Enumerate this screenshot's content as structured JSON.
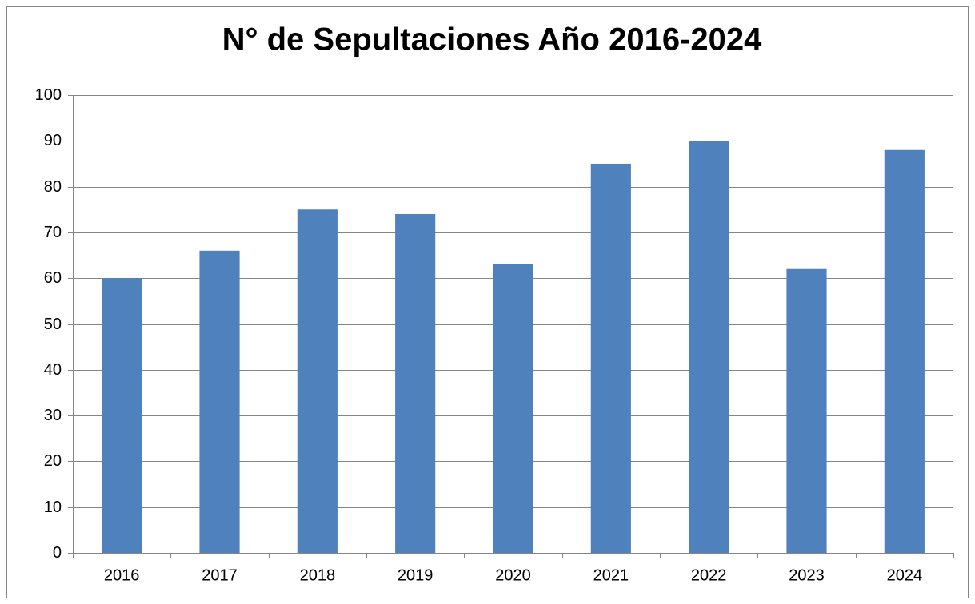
{
  "chart_data": {
    "type": "bar",
    "title": "N° de Sepultaciones Año 2016-2024",
    "categories": [
      "2016",
      "2017",
      "2018",
      "2019",
      "2020",
      "2021",
      "2022",
      "2023",
      "2024"
    ],
    "values": [
      60,
      66,
      75,
      74,
      63,
      85,
      90,
      62,
      88
    ],
    "color": "#4f81bd",
    "ylim": [
      0,
      100
    ],
    "yticks": [
      0,
      10,
      20,
      30,
      40,
      50,
      60,
      70,
      80,
      90,
      100
    ],
    "grid": true
  }
}
